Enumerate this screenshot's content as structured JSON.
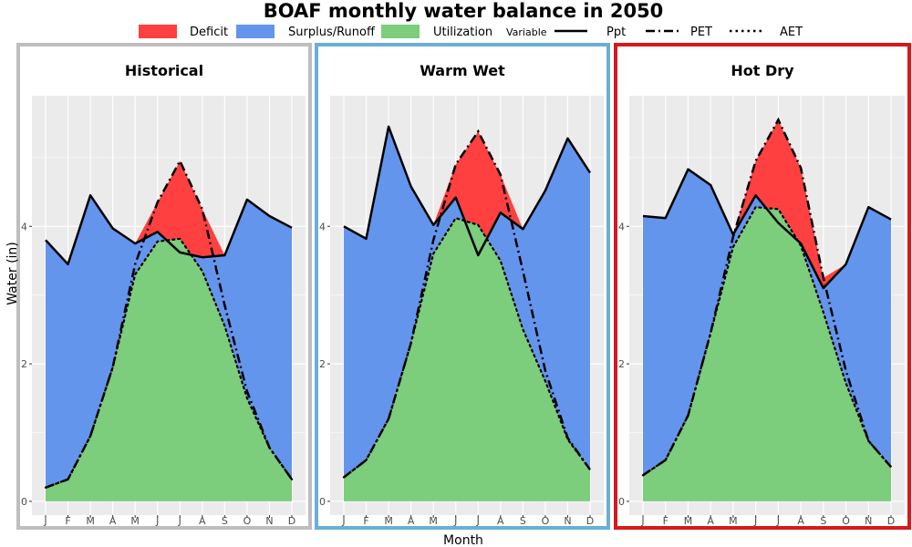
{
  "title": "BOAF monthly water balance in 2050",
  "legend": {
    "fill_items": [
      {
        "label": "Deficit",
        "color": "#ff4040"
      },
      {
        "label": "Surplus/Runoff",
        "color": "#6495ed"
      },
      {
        "label": "Utilization",
        "color": "#7ccd7c"
      }
    ],
    "variable_title": "Variable",
    "line_items": [
      {
        "label": "Ppt",
        "style": "solid"
      },
      {
        "label": "PET",
        "style": "dashdot"
      },
      {
        "label": "AET",
        "style": "dotted"
      }
    ]
  },
  "colors": {
    "deficit": "#ff4040",
    "surplus": "#6495ed",
    "utilization": "#7ccd7c",
    "panel_background": "#ebebeb",
    "grid": "#ffffff",
    "historical_border": "#bebebe",
    "warm_wet_border": "#6baed6",
    "hot_dry_border": "#d7191c"
  },
  "chart_data": {
    "type": "area",
    "title": "BOAF monthly water balance in 2050",
    "xlabel": "Month",
    "ylabel": "Water (in)",
    "months": [
      "J",
      "F",
      "M",
      "A",
      "M",
      "J",
      "J",
      "A",
      "S",
      "O",
      "N",
      "D"
    ],
    "ylim": [
      -0.2,
      5.9
    ],
    "yticks": [
      0,
      2,
      4
    ],
    "grid": true,
    "panels": [
      {
        "name": "Historical",
        "series": [
          {
            "name": "Ppt",
            "values": [
              3.8,
              3.45,
              4.45,
              3.97,
              3.75,
              3.92,
              3.62,
              3.55,
              3.58,
              4.39,
              4.15,
              3.98
            ]
          },
          {
            "name": "PET",
            "values": [
              0.2,
              0.32,
              0.95,
              1.95,
              3.45,
              4.35,
              4.95,
              4.25,
              2.85,
              1.6,
              0.78,
              0.32
            ]
          },
          {
            "name": "AET",
            "values": [
              0.2,
              0.32,
              0.95,
              1.95,
              3.3,
              3.78,
              3.82,
              3.35,
              2.55,
              1.5,
              0.78,
              0.32
            ]
          }
        ]
      },
      {
        "name": "Warm Wet",
        "series": [
          {
            "name": "Ppt",
            "values": [
              4.0,
              3.82,
              5.45,
              4.58,
              4.02,
              4.42,
              3.58,
              4.2,
              3.96,
              4.52,
              5.28,
              4.78
            ]
          },
          {
            "name": "PET",
            "values": [
              0.35,
              0.6,
              1.2,
              2.3,
              3.8,
              4.9,
              5.38,
              4.75,
              3.35,
              1.9,
              0.92,
              0.46
            ]
          },
          {
            "name": "AET",
            "values": [
              0.35,
              0.6,
              1.2,
              2.3,
              3.6,
              4.12,
              4.02,
              3.5,
              2.5,
              1.75,
              0.9,
              0.46
            ]
          }
        ]
      },
      {
        "name": "Hot Dry",
        "series": [
          {
            "name": "Ppt",
            "values": [
              4.15,
              4.12,
              4.83,
              4.6,
              3.88,
              4.45,
              4.05,
              3.75,
              3.1,
              3.45,
              4.28,
              4.1
            ]
          },
          {
            "name": "PET",
            "values": [
              0.38,
              0.6,
              1.25,
              2.45,
              3.85,
              4.95,
              5.55,
              4.85,
              3.25,
              1.9,
              0.88,
              0.5
            ]
          },
          {
            "name": "AET",
            "values": [
              0.38,
              0.6,
              1.25,
              2.45,
              3.7,
              4.28,
              4.25,
              3.72,
              2.75,
              1.72,
              0.88,
              0.5
            ]
          }
        ]
      }
    ]
  }
}
